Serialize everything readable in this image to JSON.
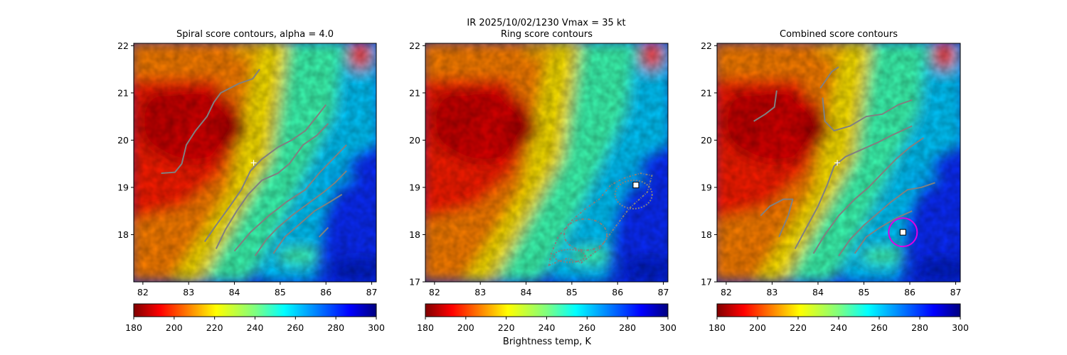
{
  "figure": {
    "suptitle_line1": "IR  2025/10/02/1230    Vmax = 35 kt",
    "colorbar_label": "Brightness temp, K"
  },
  "chart_data": [
    {
      "type": "heatmap",
      "title": "Spiral score contours, alpha =  4.0",
      "xlim": [
        81.8,
        87.1
      ],
      "ylim": [
        17.0,
        22.05
      ],
      "xticks": [
        82,
        83,
        84,
        85,
        86,
        87
      ],
      "yticks": [
        18,
        19,
        20,
        21,
        22
      ],
      "colorbar": {
        "cmap": "jet_r",
        "range": [
          180,
          300
        ],
        "ticks": [
          180,
          200,
          220,
          240,
          260,
          280,
          300
        ]
      },
      "center_marker": {
        "symbol": "+",
        "lon": 84.42,
        "lat": 19.52
      },
      "contours": [
        [
          [
            82.4,
            19.3
          ],
          [
            82.7,
            19.32
          ],
          [
            82.85,
            19.5
          ],
          [
            82.95,
            19.9
          ],
          [
            83.15,
            20.2
          ],
          [
            83.4,
            20.5
          ],
          [
            83.55,
            20.8
          ],
          [
            83.7,
            21.0
          ],
          [
            84.1,
            21.2
          ],
          [
            84.4,
            21.3
          ],
          [
            84.55,
            21.5
          ]
        ],
        [
          [
            83.35,
            17.85
          ],
          [
            83.6,
            18.2
          ],
          [
            83.9,
            18.6
          ],
          [
            84.15,
            18.95
          ],
          [
            84.35,
            19.35
          ],
          [
            84.6,
            19.6
          ],
          [
            84.95,
            19.85
          ],
          [
            85.25,
            20.0
          ],
          [
            85.55,
            20.2
          ],
          [
            85.8,
            20.5
          ],
          [
            86.0,
            20.75
          ]
        ],
        [
          [
            83.6,
            17.7
          ],
          [
            83.8,
            18.1
          ],
          [
            84.05,
            18.5
          ],
          [
            84.3,
            18.85
          ],
          [
            84.6,
            19.15
          ],
          [
            84.95,
            19.3
          ],
          [
            85.2,
            19.5
          ],
          [
            85.5,
            19.9
          ],
          [
            85.8,
            20.1
          ],
          [
            86.05,
            20.35
          ]
        ],
        [
          [
            84.0,
            17.65
          ],
          [
            84.35,
            18.05
          ],
          [
            84.75,
            18.4
          ],
          [
            85.15,
            18.7
          ],
          [
            85.55,
            18.95
          ],
          [
            85.85,
            19.3
          ],
          [
            86.2,
            19.65
          ],
          [
            86.45,
            19.9
          ]
        ],
        [
          [
            84.45,
            17.55
          ],
          [
            84.7,
            17.9
          ],
          [
            84.95,
            18.15
          ],
          [
            85.25,
            18.4
          ],
          [
            85.6,
            18.65
          ],
          [
            85.95,
            18.9
          ],
          [
            86.2,
            19.1
          ],
          [
            86.45,
            19.35
          ]
        ],
        [
          [
            84.85,
            17.6
          ],
          [
            85.1,
            17.95
          ],
          [
            85.4,
            18.2
          ],
          [
            85.75,
            18.5
          ],
          [
            86.1,
            18.7
          ],
          [
            86.35,
            18.85
          ]
        ],
        [
          [
            85.85,
            17.95
          ],
          [
            86.05,
            18.15
          ]
        ]
      ]
    },
    {
      "type": "heatmap",
      "title": "Ring score contours",
      "xlim": [
        81.8,
        87.1
      ],
      "ylim": [
        17.0,
        22.05
      ],
      "xticks": [
        82,
        83,
        84,
        85,
        86,
        87
      ],
      "yticks": [
        17,
        18,
        19,
        20,
        21,
        22
      ],
      "colorbar": {
        "cmap": "jet_r",
        "range": [
          180,
          300
        ],
        "ticks": [
          180,
          200,
          220,
          240,
          260,
          280,
          300
        ]
      },
      "square_marker": {
        "lon": 86.4,
        "lat": 19.05
      },
      "ring_region": [
        [
          84.5,
          17.35
        ],
        [
          84.9,
          17.5
        ],
        [
          85.2,
          17.4
        ],
        [
          85.6,
          17.7
        ],
        [
          85.9,
          18.1
        ],
        [
          86.25,
          18.55
        ],
        [
          86.65,
          18.9
        ],
        [
          86.75,
          19.25
        ],
        [
          86.5,
          19.3
        ],
        [
          86.15,
          19.2
        ],
        [
          85.85,
          19.05
        ],
        [
          85.6,
          18.75
        ],
        [
          85.3,
          18.55
        ],
        [
          85.0,
          18.3
        ],
        [
          84.7,
          17.95
        ],
        [
          84.55,
          17.6
        ]
      ]
    },
    {
      "type": "heatmap",
      "title": "Combined score contours",
      "xlim": [
        81.8,
        87.1
      ],
      "ylim": [
        17.0,
        22.05
      ],
      "xticks": [
        82,
        83,
        84,
        85,
        86,
        87
      ],
      "yticks": [
        17,
        18,
        19,
        20,
        21,
        22
      ],
      "colorbar": {
        "cmap": "jet_r",
        "range": [
          180,
          300
        ],
        "ticks": [
          180,
          200,
          220,
          240,
          260,
          280,
          300
        ]
      },
      "center_marker": {
        "symbol": "+",
        "lon": 84.42,
        "lat": 19.52
      },
      "square_marker": {
        "lon": 85.85,
        "lat": 18.05
      },
      "circle_marker": {
        "lon": 85.85,
        "lat": 18.05
      },
      "contours": [
        [
          [
            82.6,
            20.4
          ],
          [
            82.85,
            20.55
          ],
          [
            83.05,
            20.7
          ],
          [
            83.1,
            21.05
          ]
        ],
        [
          [
            82.75,
            18.4
          ],
          [
            82.95,
            18.6
          ],
          [
            83.25,
            18.75
          ],
          [
            83.45,
            18.75
          ],
          [
            83.35,
            18.4
          ],
          [
            83.15,
            17.95
          ]
        ],
        [
          [
            83.5,
            17.7
          ],
          [
            83.75,
            18.15
          ],
          [
            84.0,
            18.6
          ],
          [
            84.2,
            19.05
          ],
          [
            84.35,
            19.45
          ],
          [
            84.6,
            19.65
          ],
          [
            84.95,
            19.8
          ],
          [
            85.3,
            19.95
          ],
          [
            85.6,
            20.1
          ],
          [
            86.05,
            20.3
          ]
        ],
        [
          [
            83.9,
            17.6
          ],
          [
            84.15,
            18.0
          ],
          [
            84.45,
            18.4
          ],
          [
            84.8,
            18.75
          ],
          [
            85.1,
            19.0
          ],
          [
            85.4,
            19.3
          ],
          [
            85.7,
            19.6
          ],
          [
            86.0,
            19.85
          ],
          [
            86.3,
            20.05
          ]
        ],
        [
          [
            84.45,
            17.55
          ],
          [
            84.7,
            17.9
          ],
          [
            85.0,
            18.2
          ],
          [
            85.3,
            18.45
          ],
          [
            85.6,
            18.7
          ],
          [
            85.95,
            18.95
          ],
          [
            86.25,
            19.0
          ],
          [
            86.55,
            19.1
          ]
        ],
        [
          [
            84.8,
            17.6
          ],
          [
            85.05,
            17.95
          ],
          [
            85.35,
            18.15
          ],
          [
            85.7,
            18.35
          ],
          [
            86.05,
            18.5
          ]
        ],
        [
          [
            84.05,
            21.1
          ],
          [
            84.3,
            21.45
          ],
          [
            84.45,
            21.55
          ]
        ],
        [
          [
            84.1,
            20.9
          ],
          [
            84.15,
            20.4
          ],
          [
            84.35,
            20.2
          ],
          [
            84.7,
            20.3
          ],
          [
            85.05,
            20.5
          ],
          [
            85.4,
            20.55
          ],
          [
            85.75,
            20.75
          ],
          [
            86.05,
            20.85
          ]
        ]
      ]
    }
  ]
}
